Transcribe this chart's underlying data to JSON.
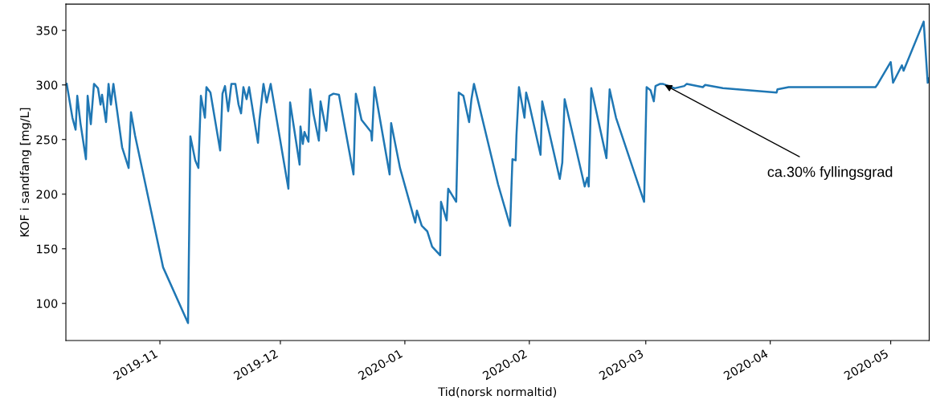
{
  "chart_data": {
    "type": "line",
    "xlabel": "Tid(norsk normaltid)",
    "ylabel": "KOF i sandfang [mg/L]",
    "xlim": [
      "2019-10-08T14:00",
      "2020-05-10T14:00"
    ],
    "xticks": [
      {
        "value": "2019-11-01",
        "label": "2019-11"
      },
      {
        "value": "2019-12-01",
        "label": "2019-12"
      },
      {
        "value": "2020-01-01",
        "label": "2020-01"
      },
      {
        "value": "2020-02-01",
        "label": "2020-02"
      },
      {
        "value": "2020-03-01",
        "label": "2020-03"
      },
      {
        "value": "2020-04-01",
        "label": "2020-04"
      },
      {
        "value": "2020-05-01",
        "label": "2020-05"
      }
    ],
    "ylim": [
      66,
      374
    ],
    "yticks": [
      100,
      150,
      200,
      250,
      300,
      350
    ],
    "grid": false,
    "legend": false,
    "marker": "none",
    "line_style": "solid",
    "annotations": [
      {
        "text": "ca.30% fyllingsgrad",
        "x": "2020-03-05T05:00",
        "y": 301
      }
    ],
    "x": [
      "2019-10-08T19:00",
      "2019-10-10T05:00",
      "2019-10-11T00:00",
      "2019-10-11T10:00",
      "2019-10-12T05:00",
      "2019-10-13T14:00",
      "2019-10-14T00:00",
      "2019-10-14T19:00",
      "2019-10-15T14:00",
      "2019-10-16T14:00",
      "2019-10-17T05:00",
      "2019-10-17T14:00",
      "2019-10-18T14:00",
      "2019-10-19T05:00",
      "2019-10-19T19:00",
      "2019-10-20T10:00",
      "2019-10-22T14:00",
      "2019-10-24T05:00",
      "2019-10-24T19:00",
      "2019-10-25T19:00",
      "2019-11-01T19:00",
      "2019-11-08T00:00",
      "2019-11-08T14:00",
      "2019-11-09T19:00",
      "2019-11-10T14:00",
      "2019-11-11T05:00",
      "2019-11-12T05:00",
      "2019-11-12T14:00",
      "2019-11-13T14:00",
      "2019-11-16T00:00",
      "2019-11-16T14:00",
      "2019-11-17T05:00",
      "2019-11-18T00:00",
      "2019-11-18T19:00",
      "2019-11-19T19:00",
      "2019-11-20T14:00",
      "2019-11-21T05:00",
      "2019-11-21T19:00",
      "2019-11-22T14:00",
      "2019-11-23T05:00",
      "2019-11-25T10:00",
      "2019-11-25T19:00",
      "2019-11-26T19:00",
      "2019-11-27T14:00",
      "2019-11-28T14:00",
      "2019-12-03T00:00",
      "2019-12-03T10:00",
      "2019-12-05T19:00",
      "2019-12-06T00:00",
      "2019-12-06T14:00",
      "2019-12-07T00:00",
      "2019-12-08T00:00",
      "2019-12-08T10:00",
      "2019-12-09T05:00",
      "2019-12-10T14:00",
      "2019-12-11T00:00",
      "2019-12-12T10:00",
      "2019-12-13T05:00",
      "2019-12-14T05:00",
      "2019-12-15T14:00",
      "2019-12-19T05:00",
      "2019-12-19T19:00",
      "2019-12-21T05:00",
      "2019-12-23T14:00",
      "2019-12-23T19:00",
      "2019-12-24T10:00",
      "2019-12-28T05:00",
      "2019-12-28T14:00",
      "2019-12-30T19:00",
      "2020-01-03T14:00",
      "2020-01-04T00:00",
      "2020-01-05T05:00",
      "2020-01-06T14:00",
      "2020-01-07T19:00",
      "2020-01-09T19:00",
      "2020-01-10T00:00",
      "2020-01-11T10:00",
      "2020-01-11T19:00",
      "2020-01-13T19:00",
      "2020-01-14T00:00",
      "2020-01-14T10:00",
      "2020-01-15T14:00",
      "2020-01-17T00:00",
      "2020-01-17T14:00",
      "2020-01-18T05:00",
      "2020-01-24T05:00",
      "2020-01-27T05:00",
      "2020-01-27T19:00",
      "2020-01-28T14:00",
      "2020-01-28T19:00",
      "2020-01-29T10:00",
      "2020-01-30T19:00",
      "2020-01-31T05:00",
      "2020-02-01T00:00",
      "2020-02-03T19:00",
      "2020-02-04T05:00",
      "2020-02-08T14:00",
      "2020-02-09T05:00",
      "2020-02-09T19:00",
      "2020-02-14T19:00",
      "2020-02-15T10:00",
      "2020-02-15T19:00",
      "2020-02-16T10:00",
      "2020-02-20T05:00",
      "2020-02-21T00:00",
      "2020-02-22T14:00",
      "2020-02-29T14:00",
      "2020-03-01T05:00",
      "2020-03-02T05:00",
      "2020-03-03T00:00",
      "2020-03-03T10:00",
      "2020-03-04T14:00",
      "2020-03-05T05:00",
      "2020-03-08T05:00",
      "2020-03-10T14:00",
      "2020-03-11T05:00",
      "2020-03-15T05:00",
      "2020-03-15T19:00",
      "2020-03-20T05:00",
      "2020-04-02T14:00",
      "2020-04-02T19:00",
      "2020-04-05T14:00",
      "2020-04-27T05:00",
      "2020-04-27T19:00",
      "2020-05-01T00:00",
      "2020-05-01T14:00",
      "2020-05-03T19:00",
      "2020-05-04T05:00",
      "2020-05-09T05:00",
      "2020-05-10T05:00",
      "2020-05-10T14:00"
    ],
    "series": [
      {
        "color": "#1f77b4",
        "values": [
          301,
          270,
          259,
          290,
          265,
          232,
          290,
          264,
          301,
          297,
          282,
          291,
          266,
          301,
          282,
          301,
          243,
          224,
          275,
          254,
          133,
          82,
          253,
          231,
          224,
          290,
          270,
          298,
          293,
          240,
          292,
          299,
          276,
          301,
          301,
          282,
          274,
          298,
          287,
          298,
          247,
          268,
          301,
          284,
          301,
          205,
          284,
          227,
          262,
          246,
          257,
          248,
          296,
          274,
          249,
          285,
          258,
          290,
          292,
          291,
          218,
          292,
          268,
          257,
          249,
          298,
          218,
          265,
          224,
          174,
          185,
          171,
          166,
          152,
          144,
          193,
          176,
          205,
          193,
          227,
          293,
          290,
          266,
          287,
          301,
          209,
          171,
          232,
          231,
          254,
          298,
          270,
          293,
          282,
          236,
          285,
          214,
          229,
          287,
          207,
          215,
          207,
          297,
          233,
          296,
          270,
          193,
          298,
          295,
          285,
          299,
          301,
          301,
          297,
          299,
          301,
          298,
          300,
          297,
          293,
          296,
          298,
          298,
          301,
          321,
          302,
          318,
          313,
          358,
          302,
          306
        ]
      }
    ]
  }
}
